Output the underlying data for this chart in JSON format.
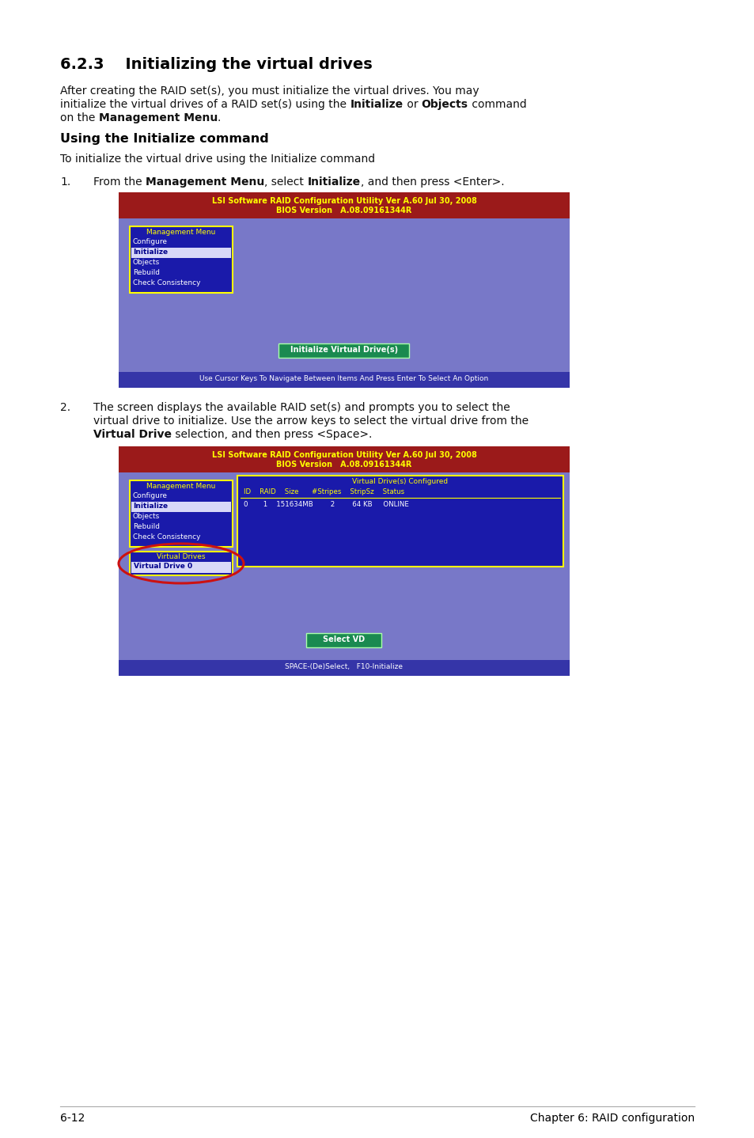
{
  "page_bg": "#ffffff",
  "title_section_num": "6.2.3",
  "title_section_text": "Initializing the virtual drives",
  "para1_line1": "After creating the RAID set(s), you must initialize the virtual drives. You may",
  "para1_line2_parts": [
    [
      "initialize the virtual drives of a RAID set(s) using the ",
      false
    ],
    [
      "Initialize",
      true
    ],
    [
      " or ",
      false
    ],
    [
      "Objects",
      true
    ],
    [
      " command",
      false
    ]
  ],
  "para1_line3_parts": [
    [
      "on the ",
      false
    ],
    [
      "Management Menu",
      true
    ],
    [
      ".",
      false
    ]
  ],
  "subheading": "Using the Initialize command",
  "para2": "To initialize the virtual drive using the Initialize command",
  "item1_num": "1.",
  "item1_parts": [
    [
      "From the ",
      false
    ],
    [
      "Management Menu",
      true
    ],
    [
      ", select ",
      false
    ],
    [
      "Initialize",
      true
    ],
    [
      ", and then press <Enter>.",
      false
    ]
  ],
  "item2_num": "2.",
  "item2_line1": "The screen displays the available RAID set(s) and prompts you to select the",
  "item2_line2": "virtual drive to initialize. Use the arrow keys to select the virtual drive from the",
  "item2_line3_parts": [
    [
      "Virtual Drive",
      true
    ],
    [
      " selection, and then press <Space>.",
      false
    ]
  ],
  "screen_header1": "LSI Software RAID Configuration Utility Ver A.60 Jul 30, 2008",
  "screen_header2": "BIOS Version   A.08.09161344R",
  "screen_header_bg": "#9b1a1a",
  "screen_header_fg": "#ffff00",
  "screen_body_bg": "#7878c8",
  "screen_footer_bg": "#3535a8",
  "screen_footer_fg": "#ffffff",
  "screen1_footer": "Use Cursor Keys To Navigate Between Items And Press Enter To Select An Option",
  "screen2_footer": "SPACE-(De)Select,   F10-Initialize",
  "menu_bg": "#1a1aaa",
  "menu_border": "#ffff00",
  "menu_title": "Management Menu",
  "menu_items": [
    "Configure",
    "Initialize",
    "Objects",
    "Rebuild",
    "Check Consistency"
  ],
  "menu_selected": "Initialize",
  "menu_selected_bg": "#d8d8f8",
  "menu_selected_fg": "#00008b",
  "menu_item_fg": "#ffffff",
  "btn1_text": "Initialize Virtual Drive(s)",
  "btn_bg": "#1a8a50",
  "btn_fg": "#ffffff",
  "btn2_text": "Select VD",
  "tbl_bg": "#1a1aaa",
  "tbl_border": "#ffff00",
  "tbl_title": "Virtual Drive(s) Configured",
  "tbl_header_fg": "#ffff00",
  "tbl_header": "ID    RAID    Size      #Stripes    StripSz    Status",
  "tbl_row_fg": "#ffffff",
  "tbl_row": "0       1    151634MB        2         64 KB     ONLINE",
  "vd_title": "Virtual Drives",
  "vd_item": "Virtual Drive 0",
  "vd_ellipse_color": "#cc1111",
  "footer_left": "6-12",
  "footer_right": "Chapter 6: RAID configuration",
  "footer_line_color": "#aaaaaa"
}
